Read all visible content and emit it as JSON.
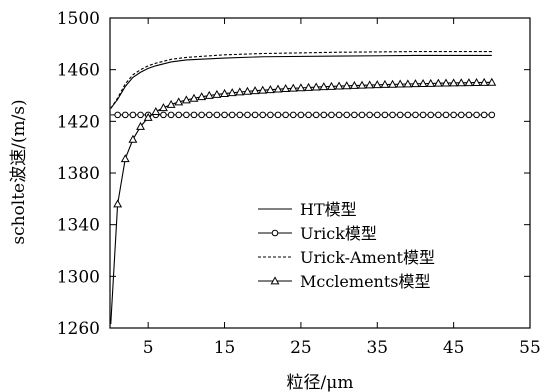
{
  "chart_data": {
    "type": "line",
    "xlabel": "粒径/μm",
    "ylabel": "scholte波速/(m/s)",
    "xlim": [
      0,
      55
    ],
    "ylim": [
      1260,
      1500
    ],
    "xticks": [
      5,
      15,
      25,
      35,
      45,
      55
    ],
    "yticks": [
      1260,
      1300,
      1340,
      1380,
      1420,
      1460,
      1500
    ],
    "grid": false,
    "legend_position": "lower-right",
    "series": [
      {
        "name": "HT模型",
        "style": "solid",
        "marker": "none",
        "x": [
          0.1,
          1,
          2,
          3,
          4,
          5,
          6,
          8,
          10,
          15,
          20,
          30,
          40,
          50
        ],
        "y": [
          1430,
          1437,
          1447,
          1454,
          1458,
          1461,
          1463,
          1466,
          1467.5,
          1469,
          1470,
          1470.5,
          1471,
          1471
        ]
      },
      {
        "name": "Urick模型",
        "style": "solid",
        "marker": "circle",
        "x": [
          0.1,
          1,
          2,
          3,
          4,
          5,
          6,
          7,
          8,
          9,
          10,
          11,
          12,
          13,
          14,
          15,
          16,
          17,
          18,
          19,
          20,
          21,
          22,
          23,
          24,
          25,
          26,
          27,
          28,
          29,
          30,
          31,
          32,
          33,
          34,
          35,
          36,
          37,
          38,
          39,
          40,
          41,
          42,
          43,
          44,
          45,
          46,
          47,
          48,
          49,
          50
        ],
        "y": [
          1425,
          1425,
          1425,
          1425,
          1425,
          1425,
          1425,
          1425,
          1425,
          1425,
          1425,
          1425,
          1425,
          1425,
          1425,
          1425,
          1425,
          1425,
          1425,
          1425,
          1425,
          1425,
          1425,
          1425,
          1425,
          1425,
          1425,
          1425,
          1425,
          1425,
          1425,
          1425,
          1425,
          1425,
          1425,
          1425,
          1425,
          1425,
          1425,
          1425,
          1425,
          1425,
          1425,
          1425,
          1425,
          1425,
          1425,
          1425,
          1425,
          1425,
          1425
        ]
      },
      {
        "name": "Urick-Ament模型",
        "style": "dashed",
        "marker": "none",
        "x": [
          0.1,
          1,
          2,
          3,
          4,
          5,
          6,
          8,
          10,
          15,
          20,
          30,
          40,
          50
        ],
        "y": [
          1430,
          1438,
          1449,
          1456,
          1460,
          1463,
          1465,
          1468,
          1469.5,
          1471.5,
          1472.5,
          1473.5,
          1474,
          1474
        ]
      },
      {
        "name": "Mcclements模型",
        "style": "solid",
        "marker": "triangle",
        "x": [
          0.1,
          1,
          2,
          3,
          4,
          5,
          6,
          7,
          8,
          9,
          10,
          11,
          12,
          13,
          14,
          15,
          16,
          17,
          18,
          19,
          20,
          21,
          22,
          23,
          24,
          25,
          26,
          27,
          28,
          29,
          30,
          31,
          32,
          33,
          34,
          35,
          36,
          37,
          38,
          39,
          40,
          41,
          42,
          43,
          44,
          45,
          46,
          47,
          48,
          49,
          50
        ],
        "y": [
          1263,
          1356,
          1391,
          1406,
          1416,
          1423,
          1427.5,
          1430.5,
          1433,
          1435,
          1436.5,
          1437.8,
          1439,
          1440,
          1440.8,
          1441.5,
          1442.1,
          1442.7,
          1443.2,
          1443.7,
          1444.1,
          1444.5,
          1444.9,
          1445.3,
          1445.6,
          1445.9,
          1446.2,
          1446.5,
          1446.8,
          1447,
          1447.3,
          1447.5,
          1447.7,
          1447.9,
          1448.1,
          1448.3,
          1448.5,
          1448.6,
          1448.8,
          1448.9,
          1449.1,
          1449.2,
          1449.3,
          1449.5,
          1449.6,
          1449.7,
          1449.8,
          1449.9,
          1450,
          1450.1,
          1450.2
        ]
      }
    ]
  }
}
